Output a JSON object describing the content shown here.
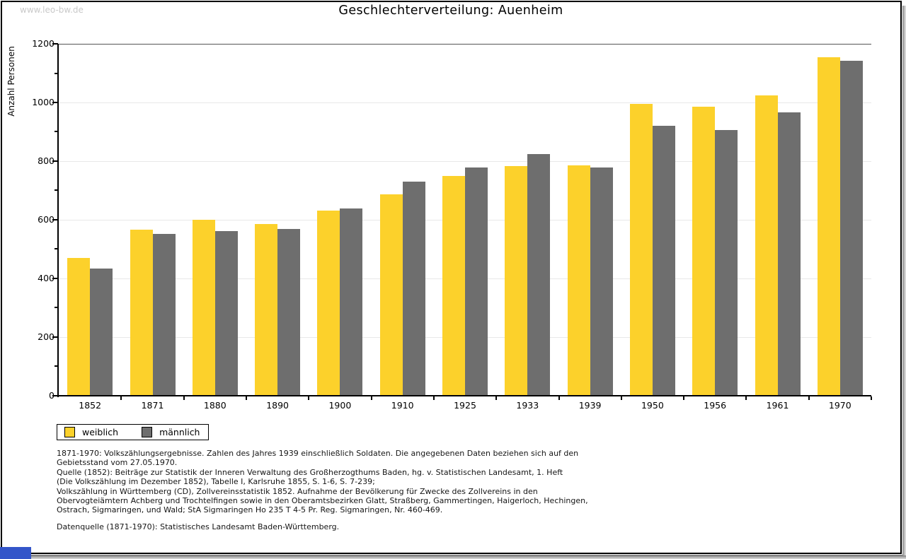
{
  "header": {
    "watermark": "www.leo-bw.de"
  },
  "chart_data": {
    "type": "bar",
    "title": "Geschlechterverteilung: Auenheim",
    "xlabel": "",
    "ylabel": "Anzahl Personen",
    "categories": [
      "1852",
      "1871",
      "1880",
      "1890",
      "1900",
      "1910",
      "1925",
      "1933",
      "1939",
      "1950",
      "1956",
      "1961",
      "1970"
    ],
    "series": [
      {
        "name": "weiblich",
        "color": "#fcd12b",
        "values": [
          470,
          565,
          600,
          585,
          631,
          687,
          750,
          783,
          786,
          995,
          986,
          1023,
          1155
        ]
      },
      {
        "name": "männlich",
        "color": "#6e6e6e",
        "values": [
          432,
          552,
          560,
          568,
          637,
          730,
          778,
          825,
          778,
          920,
          905,
          965,
          1142
        ]
      }
    ],
    "ylim": [
      0,
      1200
    ],
    "ytick_major": 200,
    "ytick_minor": 100,
    "grid": true,
    "legend_position": "below-left"
  },
  "footnotes": {
    "lines": [
      "1871-1970: Volkszählungsergebnisse. Zahlen des Jahres 1939 einschließlich Soldaten. Die angegebenen Daten beziehen sich auf den",
      "Gebietsstand vom 27.05.1970.",
      "Quelle (1852): Beiträge zur Statistik der Inneren Verwaltung des Großherzogthums Baden, hg. v. Statistischen Landesamt, 1. Heft",
      "(Die Volkszählung im Dezember 1852), Tabelle I, Karlsruhe 1855, S. 1-6, S. 7-239;",
      "Volkszählung in Württemberg (CD), Zollvereinsstatistik 1852. Aufnahme der Bevölkerung für Zwecke des Zollvereins in den",
      "Obervogteiämtern Achberg und Trochtelfingen sowie in den Oberamtsbezirken Glatt, Straßberg, Gammertingen, Haigerloch, Hechingen,",
      "Ostrach, Sigmaringen, und Wald; StA Sigmaringen Ho 235 T 4-5 Pr. Reg. Sigmaringen, Nr. 460-469."
    ],
    "datasource": "Datenquelle (1871-1970): Statistisches Landesamt Baden-Württemberg."
  },
  "ui_colors": {
    "female_bar": "#fcd12b",
    "male_bar": "#6e6e6e",
    "gridline": "#e8e8e8",
    "watermark": "#c9c9c9",
    "loading_bar": "#3355c9",
    "frame_border": "#000000"
  }
}
